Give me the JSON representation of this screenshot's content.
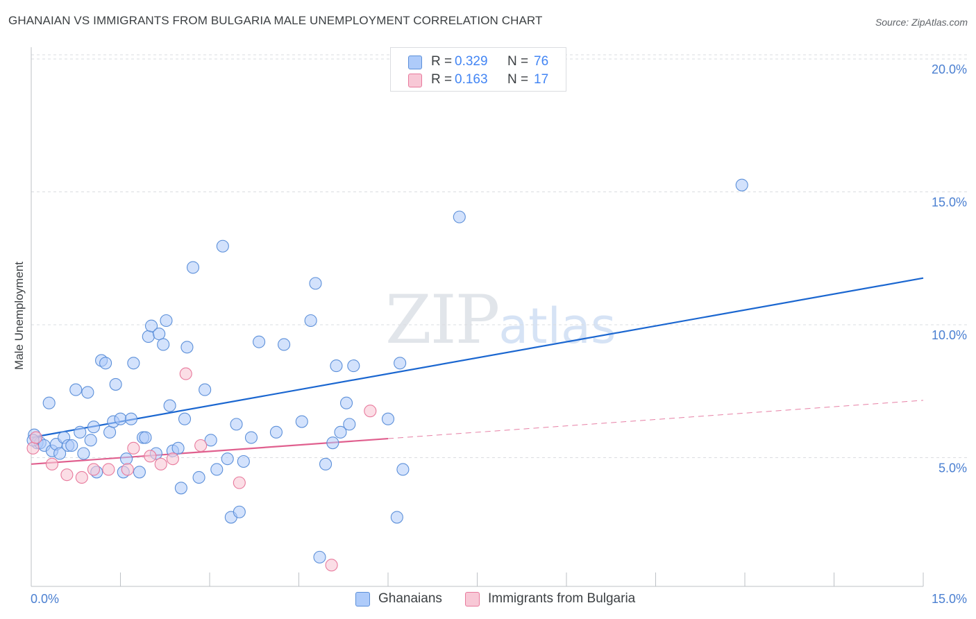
{
  "title": "GHANAIAN VS IMMIGRANTS FROM BULGARIA MALE UNEMPLOYMENT CORRELATION CHART",
  "source": "Source: ZipAtlas.com",
  "watermark": {
    "zip": "ZIP",
    "atlas": "atlas"
  },
  "legend": {
    "r_label": "R =",
    "n_label": "N =",
    "rows": [
      {
        "r": "0.329",
        "n": "76",
        "swatch_fill": "#aecbfa",
        "swatch_border": "#4285f4"
      },
      {
        "r": "0.163",
        "n": "17",
        "swatch_fill": "#f8c8d6",
        "swatch_border": "#e8799c"
      }
    ]
  },
  "colors": {
    "blue_fill": "#aecbfa",
    "blue_stroke": "#5b8fd9",
    "blue_line": "#1a66d0",
    "pink_fill": "#f8c8d6",
    "pink_stroke": "#e8799c",
    "pink_line": "#e05f8e",
    "tick_label": "#4a7fd1",
    "grid": "#dadce0"
  },
  "chart_data": {
    "type": "scatter",
    "title": "GHANAIAN VS IMMIGRANTS FROM BULGARIA MALE UNEMPLOYMENT CORRELATION CHART",
    "xlabel": "",
    "ylabel": "Male Unemployment",
    "xlim": [
      0,
      15
    ],
    "ylim": [
      0,
      20
    ],
    "x_tick_labels": [
      "0.0%",
      "15.0%"
    ],
    "y_ticks": [
      5,
      10,
      15,
      20
    ],
    "y_tick_labels": [
      "5.0%",
      "10.0%",
      "15.0%",
      "20.0%"
    ],
    "grid": true,
    "series": [
      {
        "name": "Ghanaians",
        "r": 0.329,
        "n": 76,
        "trend": {
          "x0": 0,
          "y0": 5.6,
          "x1": 15,
          "y1": 11.6,
          "dashed_from": null
        },
        "points": [
          [
            0.05,
            5.7
          ],
          [
            0.1,
            5.4
          ],
          [
            0.15,
            5.4
          ],
          [
            0.22,
            5.3
          ],
          [
            0.3,
            6.9
          ],
          [
            0.35,
            5.1
          ],
          [
            0.42,
            5.35
          ],
          [
            0.48,
            5.0
          ],
          [
            0.55,
            5.6
          ],
          [
            0.62,
            5.3
          ],
          [
            0.68,
            5.3
          ],
          [
            0.75,
            7.4
          ],
          [
            0.82,
            5.8
          ],
          [
            0.88,
            5.0
          ],
          [
            0.95,
            7.3
          ],
          [
            1.0,
            5.5
          ],
          [
            1.05,
            6.0
          ],
          [
            1.1,
            4.3
          ],
          [
            1.18,
            8.5
          ],
          [
            1.25,
            8.4
          ],
          [
            1.32,
            5.8
          ],
          [
            1.38,
            6.2
          ],
          [
            1.42,
            7.6
          ],
          [
            1.5,
            6.3
          ],
          [
            1.55,
            4.3
          ],
          [
            1.6,
            4.8
          ],
          [
            1.68,
            6.3
          ],
          [
            1.72,
            8.4
          ],
          [
            1.82,
            4.3
          ],
          [
            1.88,
            5.6
          ],
          [
            1.92,
            5.6
          ],
          [
            1.97,
            9.4
          ],
          [
            2.02,
            9.8
          ],
          [
            2.1,
            5.0
          ],
          [
            2.15,
            9.5
          ],
          [
            2.22,
            9.1
          ],
          [
            2.27,
            10.0
          ],
          [
            2.33,
            6.8
          ],
          [
            2.38,
            5.1
          ],
          [
            2.47,
            5.2
          ],
          [
            2.52,
            3.7
          ],
          [
            2.58,
            6.3
          ],
          [
            2.62,
            9.0
          ],
          [
            2.72,
            12.0
          ],
          [
            2.82,
            4.1
          ],
          [
            2.92,
            7.4
          ],
          [
            3.02,
            5.5
          ],
          [
            3.12,
            4.4
          ],
          [
            3.22,
            12.8
          ],
          [
            3.3,
            4.8
          ],
          [
            3.36,
            2.6
          ],
          [
            3.45,
            6.1
          ],
          [
            3.5,
            2.8
          ],
          [
            3.57,
            4.7
          ],
          [
            3.7,
            5.6
          ],
          [
            3.83,
            9.2
          ],
          [
            4.12,
            5.8
          ],
          [
            4.25,
            9.1
          ],
          [
            4.55,
            6.2
          ],
          [
            4.7,
            10.0
          ],
          [
            4.78,
            11.4
          ],
          [
            4.85,
            1.1
          ],
          [
            4.95,
            4.6
          ],
          [
            5.07,
            5.4
          ],
          [
            5.13,
            8.3
          ],
          [
            5.2,
            5.8
          ],
          [
            5.3,
            6.9
          ],
          [
            5.35,
            6.1
          ],
          [
            5.42,
            8.3
          ],
          [
            6.0,
            6.3
          ],
          [
            6.15,
            2.6
          ],
          [
            6.2,
            8.4
          ],
          [
            6.25,
            4.4
          ],
          [
            7.2,
            13.9
          ],
          [
            11.95,
            15.1
          ],
          [
            0.03,
            5.5
          ]
        ]
      },
      {
        "name": "Immigrants from Bulgaria",
        "r": 0.163,
        "n": 17,
        "trend": {
          "x0": 0,
          "y0": 4.6,
          "x1": 15,
          "y1": 7.0,
          "dashed_from": 6.0
        },
        "points": [
          [
            0.03,
            5.2
          ],
          [
            0.08,
            5.6
          ],
          [
            0.35,
            4.6
          ],
          [
            0.6,
            4.2
          ],
          [
            0.85,
            4.1
          ],
          [
            1.05,
            4.4
          ],
          [
            1.3,
            4.4
          ],
          [
            1.62,
            4.4
          ],
          [
            1.72,
            5.2
          ],
          [
            2.0,
            4.9
          ],
          [
            2.18,
            4.6
          ],
          [
            2.38,
            4.8
          ],
          [
            2.6,
            8.0
          ],
          [
            2.85,
            5.3
          ],
          [
            3.5,
            3.9
          ],
          [
            5.05,
            0.8
          ],
          [
            5.7,
            6.6
          ]
        ]
      }
    ]
  }
}
